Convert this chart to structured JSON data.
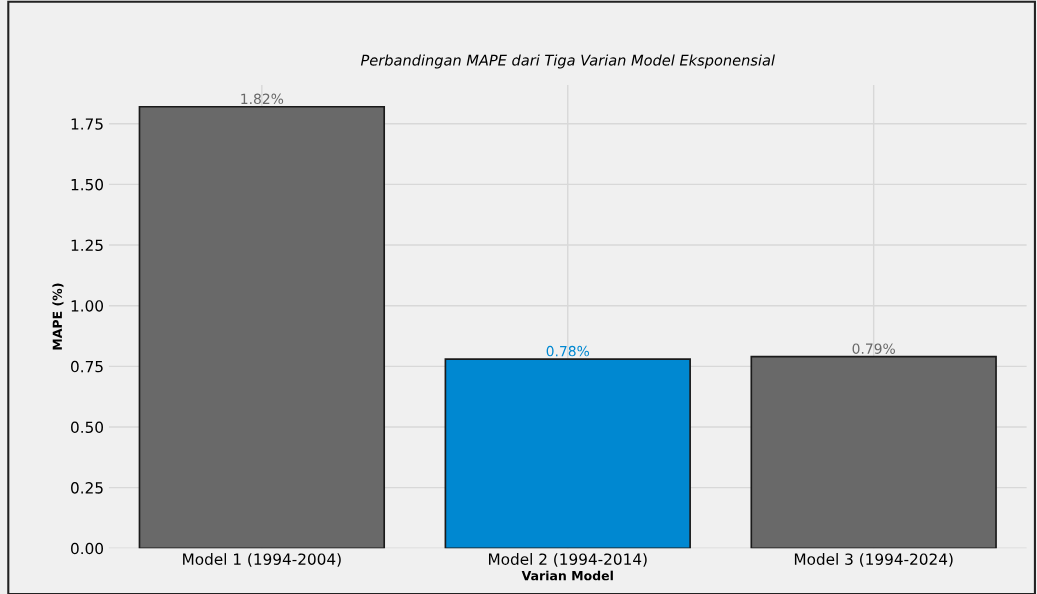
{
  "chart_data": {
    "type": "bar",
    "title": "Perbandingan MAPE dari Tiga Varian Model Eksponensial",
    "xlabel": "Varian Model",
    "ylabel": "MAPE (%)",
    "categories": [
      "Model 1 (1994-2004)",
      "Model 2 (1994-2014)",
      "Model 3 (1994-2024)"
    ],
    "values": [
      1.82,
      0.78,
      0.79
    ],
    "colors": [
      "#696969",
      "#0088d1",
      "#696969"
    ],
    "value_labels": [
      "1.82%",
      "0.78%",
      "0.79%"
    ],
    "ylim": [
      0,
      1.91
    ],
    "yticks": [
      {
        "value": 0,
        "label": "0.00"
      },
      0.25,
      {
        "value": 0.5,
        "label": "0.50"
      },
      0.75,
      {
        "value": 1,
        "label": "1.00"
      },
      1.25,
      {
        "value": 1.5,
        "label": "1.50"
      },
      1.75
    ],
    "grid": true,
    "legend": false
  }
}
